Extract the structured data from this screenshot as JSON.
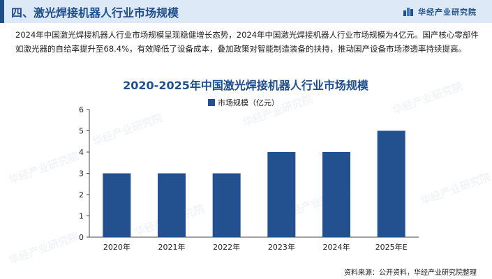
{
  "header": {
    "title": "四、激光焊接机器人行业市场规模",
    "brand": "华经产业研究院"
  },
  "intro": "2024年中国激光焊接机器人行业市场规模呈现稳健增长态势，2024年中国激光焊接机器人行业市场规模为4亿元。国产核心零部件如激光器的自给率提升至68.4%，有效降低了设备成本，叠加政策对智能制造装备的扶持，推动国产设备市场渗透率持续提高。",
  "watermark": "华经产业研究院",
  "source": "资料来源：公开资料，华经产业研究院整理",
  "colors": {
    "accent": "#1f4e8c",
    "bar": "#23508f",
    "header_bg": "#dde9f6"
  },
  "chart_data": {
    "type": "bar",
    "title": "2020-2025年中国激光焊接机器人行业市场规模",
    "categories": [
      "2020年",
      "2021年",
      "2022年",
      "2023年",
      "2024年",
      "2025年E"
    ],
    "series": [
      {
        "name": "市场规模（亿元）",
        "values": [
          3,
          3,
          3,
          4,
          4,
          5
        ]
      }
    ],
    "ylim": [
      0,
      6
    ],
    "yticks": [
      0,
      1,
      2,
      3,
      4,
      5,
      6
    ],
    "grid": false,
    "legend": "top-center"
  }
}
